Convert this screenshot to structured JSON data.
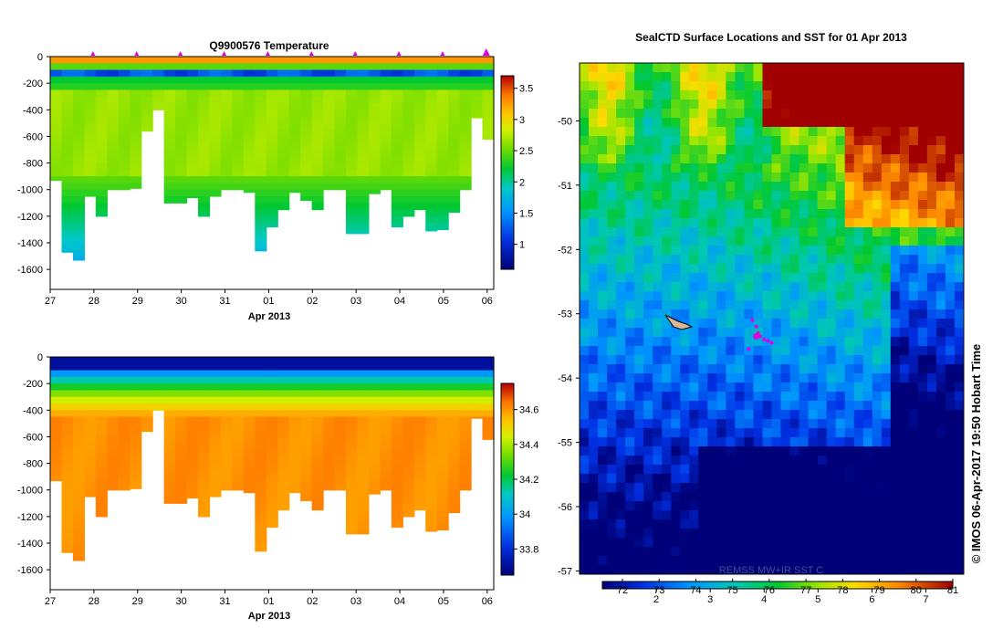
{
  "chart_data": [
    {
      "type": "heatmap",
      "title": "Q9900576  Temperature",
      "xlabel": "Apr 2013",
      "ylabel": "",
      "x_ticks": [
        "27",
        "28",
        "29",
        "30",
        "31",
        "01",
        "02",
        "03",
        "04",
        "05",
        "06"
      ],
      "xlim": [
        27,
        37.15
      ],
      "ylim": [
        -1750,
        0
      ],
      "y_ticks": [
        0,
        -200,
        -400,
        -600,
        -800,
        -1000,
        -1200,
        -1400,
        -1600
      ],
      "profile_markers_x": [
        28,
        29,
        30,
        31,
        32,
        33,
        34,
        35,
        36,
        37
      ],
      "colorbar": {
        "ticks": [
          3.5,
          3,
          2.5,
          2,
          1.5,
          1
        ],
        "range": [
          0.6,
          3.7
        ]
      },
      "profile_max_depth": [
        -930,
        -1470,
        -1530,
        -1050,
        -1200,
        -1000,
        -1000,
        -990,
        -560,
        -400,
        -1100,
        -1100,
        -1060,
        -1200,
        -1050,
        -1000,
        -1000,
        -1020,
        -1460,
        -1280,
        -1150,
        -1020,
        -1080,
        -1150,
        -1000,
        -1000,
        -1330,
        -1330,
        -1030,
        -1000,
        -1280,
        -1200,
        -1150,
        -1310,
        -1300,
        -1170,
        -1000,
        -460,
        -620
      ]
    },
    {
      "type": "heatmap",
      "title": "",
      "xlabel": "Apr 2013",
      "ylabel": "",
      "x_ticks": [
        "27",
        "28",
        "29",
        "30",
        "31",
        "01",
        "02",
        "03",
        "04",
        "05",
        "06"
      ],
      "xlim": [
        27,
        37.15
      ],
      "ylim": [
        -1750,
        0
      ],
      "y_ticks": [
        0,
        -200,
        -400,
        -600,
        -800,
        -1000,
        -1200,
        -1400,
        -1600
      ],
      "colorbar": {
        "ticks": [
          34.6,
          34.4,
          34.2,
          34,
          33.8
        ],
        "range": [
          33.65,
          34.75
        ]
      },
      "profile_max_depth": [
        -930,
        -1470,
        -1530,
        -1050,
        -1200,
        -1000,
        -1000,
        -990,
        -560,
        -400,
        -1100,
        -1100,
        -1060,
        -1200,
        -1050,
        -1000,
        -1000,
        -1020,
        -1460,
        -1280,
        -1150,
        -1020,
        -1080,
        -1150,
        -1000,
        -1000,
        -1330,
        -1330,
        -1030,
        -1000,
        -1280,
        -1200,
        -1150,
        -1310,
        -1300,
        -1170,
        -1000,
        -460,
        -620
      ]
    },
    {
      "type": "heatmap",
      "title": "SealCTD Surface Locations and SST for 01 Apr 2013",
      "xlabel": "",
      "ylabel": "",
      "ylim": [
        -57.05,
        -49.1
      ],
      "y_ticks": [
        -50,
        -51,
        -52,
        -53,
        -54,
        -55,
        -56,
        -57
      ],
      "colorbar": {
        "ticks_celsius": [
          2,
          3,
          4,
          5,
          6,
          7
        ],
        "ticks_fahrenheit": [
          "72",
          "73",
          "74",
          "75",
          "76",
          "77",
          "78",
          "79",
          "80",
          "81"
        ],
        "range": [
          1,
          7.5
        ]
      },
      "seal_track": [
        {
          "lat": -53.1,
          "lon_frac": 0.45
        },
        {
          "lat": -53.2,
          "lon_frac": 0.46
        },
        {
          "lat": -53.3,
          "lon_frac": 0.465
        },
        {
          "lat": -53.35,
          "lon_frac": 0.47
        },
        {
          "lat": -53.4,
          "lon_frac": 0.48
        },
        {
          "lat": -53.42,
          "lon_frac": 0.49
        },
        {
          "lat": -53.45,
          "lon_frac": 0.5
        },
        {
          "lat": -53.55,
          "lon_frac": 0.44
        }
      ],
      "seal_latest": {
        "lat": -53.35,
        "lon_frac": 0.46
      },
      "watermark_text": "REMSS MW+IR SST C",
      "stamp_text": "© IMOS 06-Apr-2017 19:50 Hobart Time"
    }
  ],
  "colors": {
    "marker": "#e000e0",
    "land": "#ffffff",
    "axis": "#000000"
  }
}
